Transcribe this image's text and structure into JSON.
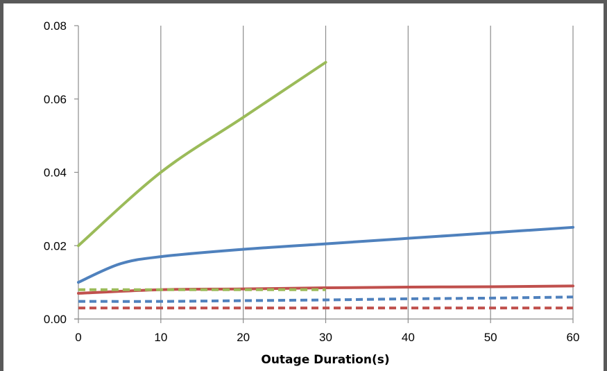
{
  "chart_data": {
    "type": "line",
    "title": "",
    "xlabel": "Outage Duration(s)",
    "ylabel": "",
    "xlim": [
      0,
      60
    ],
    "ylim": [
      0,
      0.08
    ],
    "x_ticks": [
      "0",
      "10",
      "20",
      "30",
      "40",
      "50",
      "60"
    ],
    "y_ticks": [
      "0.00",
      "0.02",
      "0.04",
      "0.06",
      "0.08"
    ],
    "grid": "vertical",
    "legend": "none",
    "series": [
      {
        "color": "#9BBB59",
        "style": "solid",
        "x": [
          0,
          10,
          20,
          30
        ],
        "y": [
          0.02,
          0.04,
          0.055,
          0.07
        ]
      },
      {
        "color": "#4F81BD",
        "style": "solid",
        "x": [
          0,
          5,
          10,
          20,
          30,
          40,
          50,
          60
        ],
        "y": [
          0.01,
          0.015,
          0.017,
          0.019,
          0.0205,
          0.022,
          0.0235,
          0.025
        ]
      },
      {
        "color": "#C0504D",
        "style": "solid",
        "x": [
          0,
          10,
          20,
          30,
          40,
          50,
          60
        ],
        "y": [
          0.007,
          0.008,
          0.0082,
          0.0085,
          0.0087,
          0.0088,
          0.009
        ]
      },
      {
        "color": "#9BBB59",
        "style": "dashed",
        "x": [
          0,
          10,
          20,
          30
        ],
        "y": [
          0.008,
          0.008,
          0.008,
          0.008
        ]
      },
      {
        "color": "#4F81BD",
        "style": "dashed",
        "x": [
          0,
          10,
          20,
          30,
          40,
          50,
          60
        ],
        "y": [
          0.0048,
          0.0048,
          0.005,
          0.0052,
          0.0055,
          0.0057,
          0.006
        ]
      },
      {
        "color": "#C0504D",
        "style": "dashed",
        "x": [
          0,
          10,
          20,
          30,
          40,
          50,
          60
        ],
        "y": [
          0.003,
          0.003,
          0.003,
          0.003,
          0.003,
          0.003,
          0.003
        ]
      }
    ]
  }
}
